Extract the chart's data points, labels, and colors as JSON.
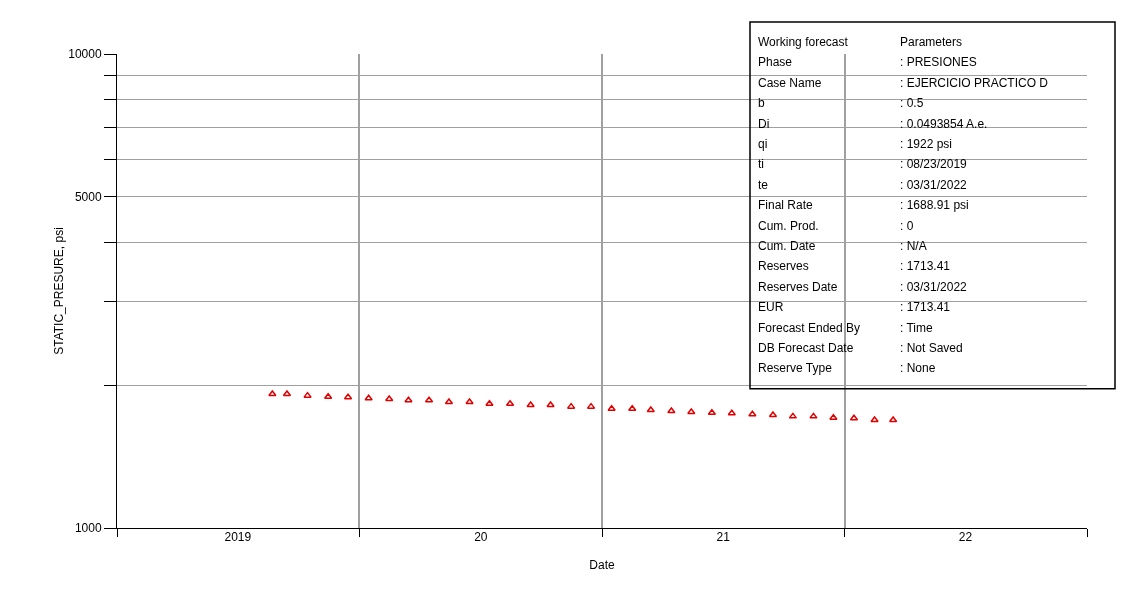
{
  "chart_data": {
    "type": "scatter",
    "xlabel": "Date",
    "ylabel": "STATIC_PRESURE, psi",
    "x": [
      "2019-08-23",
      "2019-09-14",
      "2019-10-15",
      "2019-11-15",
      "2019-12-15",
      "2020-01-15",
      "2020-02-15",
      "2020-03-15",
      "2020-04-15",
      "2020-05-15",
      "2020-06-15",
      "2020-07-15",
      "2020-08-15",
      "2020-09-15",
      "2020-10-15",
      "2020-11-15",
      "2020-12-15",
      "2021-01-15",
      "2021-02-15",
      "2021-03-15",
      "2021-04-15",
      "2021-05-15",
      "2021-06-15",
      "2021-07-15",
      "2021-08-15",
      "2021-09-15",
      "2021-10-15",
      "2021-11-15",
      "2021-12-15",
      "2022-01-15",
      "2022-02-15",
      "2022-03-15"
    ],
    "series": [
      {
        "color": "#e00000",
        "values": [
          1918,
          1918,
          1902,
          1892,
          1887,
          1878,
          1872,
          1860,
          1860,
          1845,
          1845,
          1829,
          1829,
          1818,
          1818,
          1803,
          1803,
          1785,
          1785,
          1774,
          1765,
          1757,
          1751,
          1746,
          1737,
          1731,
          1720,
          1720,
          1709,
          1704,
          1690,
          1690
        ]
      }
    ],
    "marker": "triangle",
    "log": "y",
    "grid": true,
    "xlim": [
      "2019-01-01",
      "2023-01-01"
    ],
    "xticks": [
      {
        "value": "2019-01-01",
        "label": null
      },
      {
        "value": "2019-07-02",
        "label": "2019"
      },
      {
        "value": "2020-01-01",
        "label": null
      },
      {
        "value": "2020-07-02",
        "label": "20"
      },
      {
        "value": "2021-01-01",
        "label": null
      },
      {
        "value": "2021-07-02",
        "label": "21"
      },
      {
        "value": "2022-01-01",
        "label": null
      },
      {
        "value": "2022-07-02",
        "label": "22"
      },
      {
        "value": "2023-01-01",
        "label": null
      }
    ],
    "ylim": [
      1000,
      10000
    ],
    "yticks": [
      1000,
      {
        "value": 2000,
        "label": null
      },
      {
        "value": 3000,
        "label": null
      },
      {
        "value": 4000,
        "label": null
      },
      5000,
      {
        "value": 6000,
        "label": null
      },
      {
        "value": 7000,
        "label": null
      },
      {
        "value": 8000,
        "label": null
      },
      {
        "value": 9000,
        "label": null
      },
      10000
    ],
    "annotations": [
      "Working forecast",
      "Parameters",
      "Phase",
      ": PRESIONES",
      "Case Name",
      ": EJERCICIO PRACTICO D",
      "b",
      ": 0.5",
      "Di",
      ": 0.0493854 A.e.",
      "qi",
      ": 1922 psi",
      "ti",
      ": 08/23/2019",
      "te",
      ": 03/31/2022",
      "Final Rate",
      ": 1688.91 psi",
      "Cum. Prod.",
      ": 0",
      "Cum. Date",
      ": N/A",
      "Reserves",
      ": 1713.41",
      "Reserves Date",
      ": 03/31/2022",
      "EUR",
      ": 1713.41",
      "Forecast Ended By",
      ": Time",
      "DB Forecast Date",
      ": Not Saved",
      "Reserve Type",
      ": None"
    ]
  }
}
